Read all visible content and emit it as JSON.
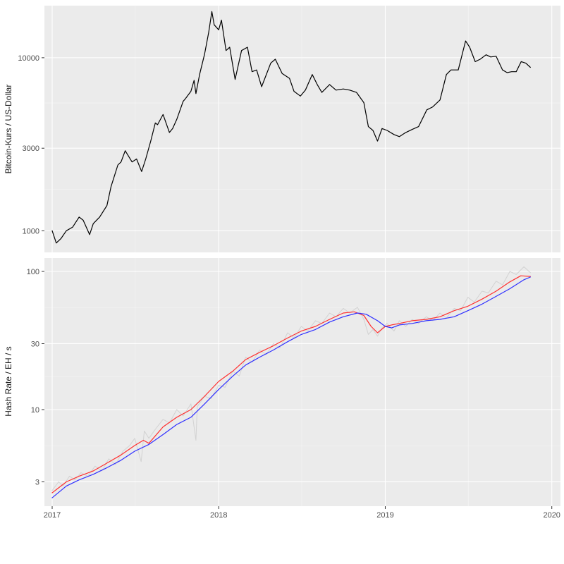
{
  "chart_data": [
    {
      "type": "line",
      "ylabel": "Bitcoin-Kurs / US-Dollar",
      "y_scale": "log",
      "ylim": [
        750,
        20000
      ],
      "y_ticks": [
        {
          "value": 1000,
          "label": "1000"
        },
        {
          "value": 3000,
          "label": "3000"
        },
        {
          "value": 10000,
          "label": "10000"
        }
      ],
      "grid": true,
      "series": [
        {
          "color": "#000000",
          "x": [
            "2017-01-01",
            "2017-01-10",
            "2017-01-20",
            "2017-02-01",
            "2017-02-15",
            "2017-03-01",
            "2017-03-10",
            "2017-03-24",
            "2017-04-01",
            "2017-04-15",
            "2017-05-01",
            "2017-05-10",
            "2017-05-25",
            "2017-06-01",
            "2017-06-10",
            "2017-06-25",
            "2017-07-05",
            "2017-07-16",
            "2017-07-25",
            "2017-08-05",
            "2017-08-15",
            "2017-08-20",
            "2017-09-01",
            "2017-09-15",
            "2017-09-22",
            "2017-10-01",
            "2017-10-15",
            "2017-10-20",
            "2017-11-01",
            "2017-11-08",
            "2017-11-12",
            "2017-11-20",
            "2017-12-01",
            "2017-12-10",
            "2017-12-17",
            "2017-12-22",
            "2018-01-01",
            "2018-01-07",
            "2018-01-17",
            "2018-01-25",
            "2018-02-06",
            "2018-02-20",
            "2018-03-05",
            "2018-03-15",
            "2018-03-25",
            "2018-04-05",
            "2018-04-25",
            "2018-05-05",
            "2018-05-20",
            "2018-06-05",
            "2018-06-15",
            "2018-06-29",
            "2018-07-10",
            "2018-07-25",
            "2018-08-05",
            "2018-08-15",
            "2018-09-01",
            "2018-09-15",
            "2018-10-01",
            "2018-10-15",
            "2018-10-30",
            "2018-11-15",
            "2018-11-25",
            "2018-12-05",
            "2018-12-15",
            "2018-12-25",
            "2019-01-05",
            "2019-01-20",
            "2019-02-01",
            "2019-02-15",
            "2019-03-01",
            "2019-03-15",
            "2019-04-02",
            "2019-04-15",
            "2019-05-01",
            "2019-05-15",
            "2019-05-25",
            "2019-06-10",
            "2019-06-26",
            "2019-07-05",
            "2019-07-17",
            "2019-07-28",
            "2019-08-10",
            "2019-08-20",
            "2019-09-01",
            "2019-09-15",
            "2019-09-25",
            "2019-10-05",
            "2019-10-15",
            "2019-10-26",
            "2019-11-05",
            "2019-11-15"
          ],
          "y": [
            1000,
            850,
            900,
            1000,
            1050,
            1200,
            1150,
            950,
            1100,
            1200,
            1400,
            1800,
            2400,
            2500,
            2900,
            2500,
            2600,
            2200,
            2600,
            3300,
            4200,
            4100,
            4700,
            3700,
            3900,
            4400,
            5600,
            5800,
            6400,
            7400,
            6200,
            8000,
            10500,
            14000,
            18500,
            15500,
            14500,
            16500,
            11000,
            11500,
            7500,
            11000,
            11500,
            8300,
            8500,
            6800,
            9300,
            9800,
            8100,
            7600,
            6400,
            6000,
            6500,
            8000,
            7000,
            6300,
            7000,
            6500,
            6600,
            6500,
            6300,
            5500,
            4000,
            3800,
            3300,
            3900,
            3800,
            3600,
            3500,
            3700,
            3850,
            4000,
            5000,
            5200,
            5700,
            8000,
            8500,
            8500,
            12500,
            11500,
            9500,
            9800,
            10400,
            10100,
            10200,
            8500,
            8200,
            8300,
            8300,
            9500,
            9300,
            8800
          ]
        }
      ]
    },
    {
      "type": "line",
      "ylabel": "Hash Rate / EH / s",
      "y_scale": "log",
      "ylim": [
        2.0,
        125
      ],
      "y_ticks": [
        {
          "value": 3,
          "label": "3"
        },
        {
          "value": 10,
          "label": "10"
        },
        {
          "value": 30,
          "label": "30"
        },
        {
          "value": 100,
          "label": "100"
        }
      ],
      "x_ticks": [
        {
          "value": "2017-01-01",
          "label": "2017"
        },
        {
          "value": "2018-01-01",
          "label": "2018"
        },
        {
          "value": "2019-01-01",
          "label": "2019"
        },
        {
          "value": "2020-01-01",
          "label": "2020"
        }
      ],
      "xlim": [
        "2016-12-15",
        "2020-01-20"
      ],
      "grid": true,
      "series": [
        {
          "color": "#d2d2d2",
          "x": [
            "2017-01-01",
            "2017-01-15",
            "2017-01-25",
            "2017-02-08",
            "2017-02-20",
            "2017-03-05",
            "2017-03-20",
            "2017-04-05",
            "2017-04-20",
            "2017-05-05",
            "2017-05-20",
            "2017-06-05",
            "2017-06-20",
            "2017-07-01",
            "2017-07-15",
            "2017-07-22",
            "2017-08-01",
            "2017-08-15",
            "2017-09-01",
            "2017-09-15",
            "2017-10-01",
            "2017-10-15",
            "2017-11-01",
            "2017-11-12",
            "2017-11-15",
            "2017-12-01",
            "2017-12-15",
            "2018-01-01",
            "2018-01-15",
            "2018-02-01",
            "2018-02-15",
            "2018-03-01",
            "2018-03-15",
            "2018-04-01",
            "2018-04-15",
            "2018-05-01",
            "2018-05-15",
            "2018-06-01",
            "2018-06-15",
            "2018-07-01",
            "2018-07-15",
            "2018-08-01",
            "2018-08-15",
            "2018-09-01",
            "2018-09-15",
            "2018-10-01",
            "2018-10-15",
            "2018-11-01",
            "2018-11-15",
            "2018-11-25",
            "2018-12-05",
            "2018-12-15",
            "2018-12-25",
            "2019-01-05",
            "2019-01-20",
            "2019-02-01",
            "2019-02-15",
            "2019-03-01",
            "2019-03-15",
            "2019-04-01",
            "2019-04-15",
            "2019-05-01",
            "2019-05-15",
            "2019-06-01",
            "2019-06-15",
            "2019-07-01",
            "2019-07-15",
            "2019-08-01",
            "2019-08-15",
            "2019-09-01",
            "2019-09-15",
            "2019-10-01",
            "2019-10-15",
            "2019-11-01",
            "2019-11-15"
          ],
          "y": [
            2.6,
            3.0,
            2.8,
            3.3,
            3.1,
            3.5,
            3.3,
            3.9,
            3.6,
            4.4,
            4.0,
            5.0,
            5.5,
            6.2,
            4.2,
            7.0,
            6.2,
            7.2,
            8.5,
            8.0,
            10.0,
            9.0,
            11.0,
            6.0,
            10.5,
            12.5,
            12.0,
            15.0,
            14.5,
            19.0,
            17.5,
            24.0,
            22.0,
            27.0,
            25.0,
            30.0,
            28.0,
            36.0,
            33.0,
            40.0,
            37.0,
            44.0,
            42.0,
            50.0,
            47.0,
            54.0,
            50.0,
            55.0,
            45.0,
            35.0,
            38.0,
            34.0,
            39.0,
            42.0,
            37.0,
            44.0,
            40.0,
            45.0,
            42.0,
            47.0,
            44.0,
            50.0,
            46.0,
            54.0,
            52.0,
            65.0,
            60.0,
            72.0,
            70.0,
            85.0,
            80.0,
            100.0,
            95.0,
            108.0,
            98.0
          ]
        },
        {
          "color": "#ff3030",
          "x": [
            "2017-01-01",
            "2017-02-01",
            "2017-03-01",
            "2017-04-01",
            "2017-05-01",
            "2017-06-01",
            "2017-07-01",
            "2017-07-20",
            "2017-08-01",
            "2017-09-01",
            "2017-10-01",
            "2017-11-01",
            "2017-12-01",
            "2018-01-01",
            "2018-02-01",
            "2018-03-01",
            "2018-04-01",
            "2018-05-01",
            "2018-06-01",
            "2018-07-01",
            "2018-08-01",
            "2018-09-01",
            "2018-10-01",
            "2018-10-25",
            "2018-11-15",
            "2018-12-01",
            "2018-12-15",
            "2019-01-01",
            "2019-01-15",
            "2019-02-01",
            "2019-03-01",
            "2019-04-01",
            "2019-05-01",
            "2019-06-01",
            "2019-07-01",
            "2019-08-01",
            "2019-09-01",
            "2019-10-01",
            "2019-10-25",
            "2019-11-15"
          ],
          "y": [
            2.5,
            3.0,
            3.3,
            3.6,
            4.1,
            4.7,
            5.5,
            6.0,
            5.7,
            7.5,
            8.8,
            10.0,
            12.5,
            16.0,
            19.0,
            23.0,
            26.0,
            29.0,
            33.0,
            37.0,
            40.0,
            45.0,
            50.0,
            51.0,
            48.0,
            40.0,
            36.0,
            40.0,
            41.0,
            42.0,
            44.0,
            45.0,
            47.0,
            52.0,
            56.0,
            63.0,
            72.0,
            84.0,
            93.0,
            92.0
          ]
        },
        {
          "color": "#3030ff",
          "x": [
            "2017-01-01",
            "2017-02-01",
            "2017-03-01",
            "2017-04-01",
            "2017-05-01",
            "2017-06-01",
            "2017-07-01",
            "2017-08-01",
            "2017-09-01",
            "2017-10-01",
            "2017-11-01",
            "2017-12-01",
            "2018-01-01",
            "2018-02-01",
            "2018-03-01",
            "2018-04-01",
            "2018-05-01",
            "2018-06-01",
            "2018-07-01",
            "2018-08-01",
            "2018-09-01",
            "2018-10-01",
            "2018-11-01",
            "2018-11-20",
            "2018-12-15",
            "2019-01-01",
            "2019-01-15",
            "2019-02-01",
            "2019-03-01",
            "2019-04-01",
            "2019-05-01",
            "2019-06-01",
            "2019-07-01",
            "2019-08-01",
            "2019-09-01",
            "2019-10-01",
            "2019-11-01",
            "2019-11-15"
          ],
          "y": [
            2.3,
            2.8,
            3.1,
            3.4,
            3.8,
            4.3,
            5.0,
            5.6,
            6.6,
            7.8,
            8.8,
            11.0,
            14.0,
            17.5,
            21.0,
            24.0,
            27.0,
            31.0,
            35.0,
            38.0,
            43.0,
            47.0,
            50.0,
            49.0,
            44.0,
            40.0,
            39.0,
            41.0,
            42.0,
            44.0,
            45.0,
            47.0,
            52.0,
            58.0,
            66.0,
            75.0,
            87.0,
            91.0
          ]
        }
      ]
    }
  ]
}
